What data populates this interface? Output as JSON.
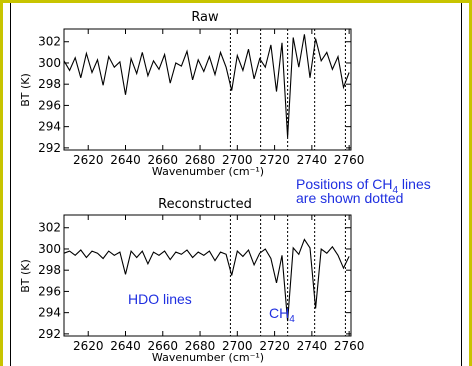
{
  "annotations": {
    "positions_line1": "Positions of CH",
    "positions_sub": "4",
    "positions_line1_end": " lines",
    "positions_line2": "are shown dotted",
    "hdo": "HDO lines",
    "ch4_main": "CH",
    "ch4_sub": "4"
  },
  "colors": {
    "annotation": "#1f2fe0",
    "frame_accent": "#c8c400",
    "line": "#000000"
  },
  "chart_data": [
    {
      "type": "line",
      "title": "Raw",
      "xlabel": "Wavenumber (cm⁻¹)",
      "ylabel": "BT (K)",
      "xlim": [
        2607,
        2761
      ],
      "ylim": [
        291.8,
        303.2
      ],
      "xticks": [
        2620,
        2640,
        2660,
        2680,
        2700,
        2720,
        2740,
        2760
      ],
      "yticks": [
        292,
        294,
        296,
        298,
        300,
        302
      ],
      "ch4_line_positions": [
        2696.3,
        2712.5,
        2727.0,
        2741.5,
        2758.0
      ],
      "series": [
        {
          "x": [
            2607,
            2610,
            2613,
            2616,
            2619,
            2622,
            2625,
            2628,
            2631,
            2634,
            2637,
            2640,
            2643,
            2646,
            2649,
            2652,
            2655,
            2658,
            2661,
            2664,
            2667,
            2670,
            2673,
            2676,
            2679,
            2682,
            2685,
            2688,
            2691,
            2694,
            2697,
            2700,
            2703,
            2706,
            2709,
            2712,
            2715,
            2718,
            2721,
            2724,
            2727,
            2730,
            2733,
            2736,
            2739,
            2742,
            2745,
            2748,
            2751,
            2754,
            2757,
            2760
          ],
          "y": [
            300.2,
            299.3,
            300.5,
            298.6,
            300.9,
            299.1,
            300.3,
            297.9,
            300.6,
            299.6,
            300.1,
            297.0,
            300.4,
            299.0,
            301.0,
            298.8,
            300.2,
            299.4,
            300.8,
            298.1,
            300.0,
            299.7,
            301.1,
            298.4,
            300.3,
            299.2,
            300.6,
            298.9,
            301.0,
            299.6,
            297.4,
            300.7,
            299.3,
            301.3,
            298.5,
            300.4,
            299.6,
            301.7,
            297.3,
            301.9,
            293.0,
            302.4,
            299.6,
            302.7,
            298.6,
            302.3,
            300.2,
            301.0,
            299.4,
            300.6,
            297.7,
            299.1
          ]
        }
      ]
    },
    {
      "type": "line",
      "title": "Reconstructed",
      "xlabel": "Wavenumber (cm⁻¹)",
      "ylabel": "BT (K)",
      "xlim": [
        2607,
        2761
      ],
      "ylim": [
        291.8,
        303.2
      ],
      "xticks": [
        2620,
        2640,
        2660,
        2680,
        2700,
        2720,
        2740,
        2760
      ],
      "yticks": [
        292,
        294,
        296,
        298,
        300,
        302
      ],
      "ch4_line_positions": [
        2696.3,
        2712.5,
        2727.0,
        2741.5,
        2758.0
      ],
      "series": [
        {
          "x": [
            2607,
            2610,
            2613,
            2616,
            2619,
            2622,
            2625,
            2628,
            2631,
            2634,
            2637,
            2640,
            2643,
            2646,
            2649,
            2652,
            2655,
            2658,
            2661,
            2664,
            2667,
            2670,
            2673,
            2676,
            2679,
            2682,
            2685,
            2688,
            2691,
            2694,
            2697,
            2700,
            2703,
            2706,
            2709,
            2712,
            2715,
            2718,
            2721,
            2724,
            2727,
            2730,
            2733,
            2736,
            2739,
            2742,
            2745,
            2748,
            2751,
            2754,
            2757,
            2760
          ],
          "y": [
            299.6,
            299.8,
            299.4,
            299.9,
            299.2,
            299.8,
            299.6,
            299.1,
            299.8,
            299.4,
            299.7,
            297.6,
            299.8,
            299.2,
            299.8,
            298.6,
            299.7,
            299.4,
            299.8,
            299.0,
            299.7,
            299.5,
            299.9,
            299.2,
            299.7,
            299.4,
            299.8,
            298.9,
            299.7,
            299.5,
            297.5,
            299.8,
            299.3,
            299.9,
            298.5,
            299.6,
            300.0,
            299.1,
            296.8,
            299.4,
            293.2,
            300.1,
            299.5,
            300.9,
            300.1,
            294.4,
            300.0,
            299.6,
            300.2,
            299.4,
            298.2,
            299.3
          ]
        }
      ]
    }
  ]
}
